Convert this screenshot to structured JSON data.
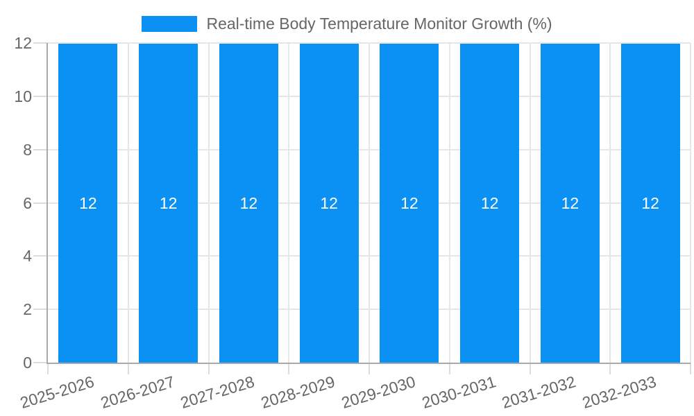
{
  "chart_data": {
    "type": "bar",
    "title": "Real-time Body Temperature Monitor Growth (%)",
    "legend_position": "top-center",
    "categories": [
      "2025-2026",
      "2026-2027",
      "2027-2028",
      "2028-2029",
      "2029-2030",
      "2030-2031",
      "2031-2032",
      "2032-2033"
    ],
    "values": [
      12,
      12,
      12,
      12,
      12,
      12,
      12,
      12
    ],
    "bar_labels": [
      "12",
      "12",
      "12",
      "12",
      "12",
      "12",
      "12",
      "12"
    ],
    "xlabel": "",
    "ylabel": "",
    "ylim": [
      0,
      12
    ],
    "yticks": [
      0,
      2,
      4,
      6,
      8,
      10,
      12
    ],
    "grid": true,
    "data_labels_visible": true
  },
  "colors": {
    "bar": "#0b90f4",
    "grid": "#e6e6e6",
    "tick": "#dcdcdc",
    "axis": "#a9a9a9",
    "text": "#666666",
    "bar_label_text": "#ffffff",
    "background": "#ffffff"
  }
}
